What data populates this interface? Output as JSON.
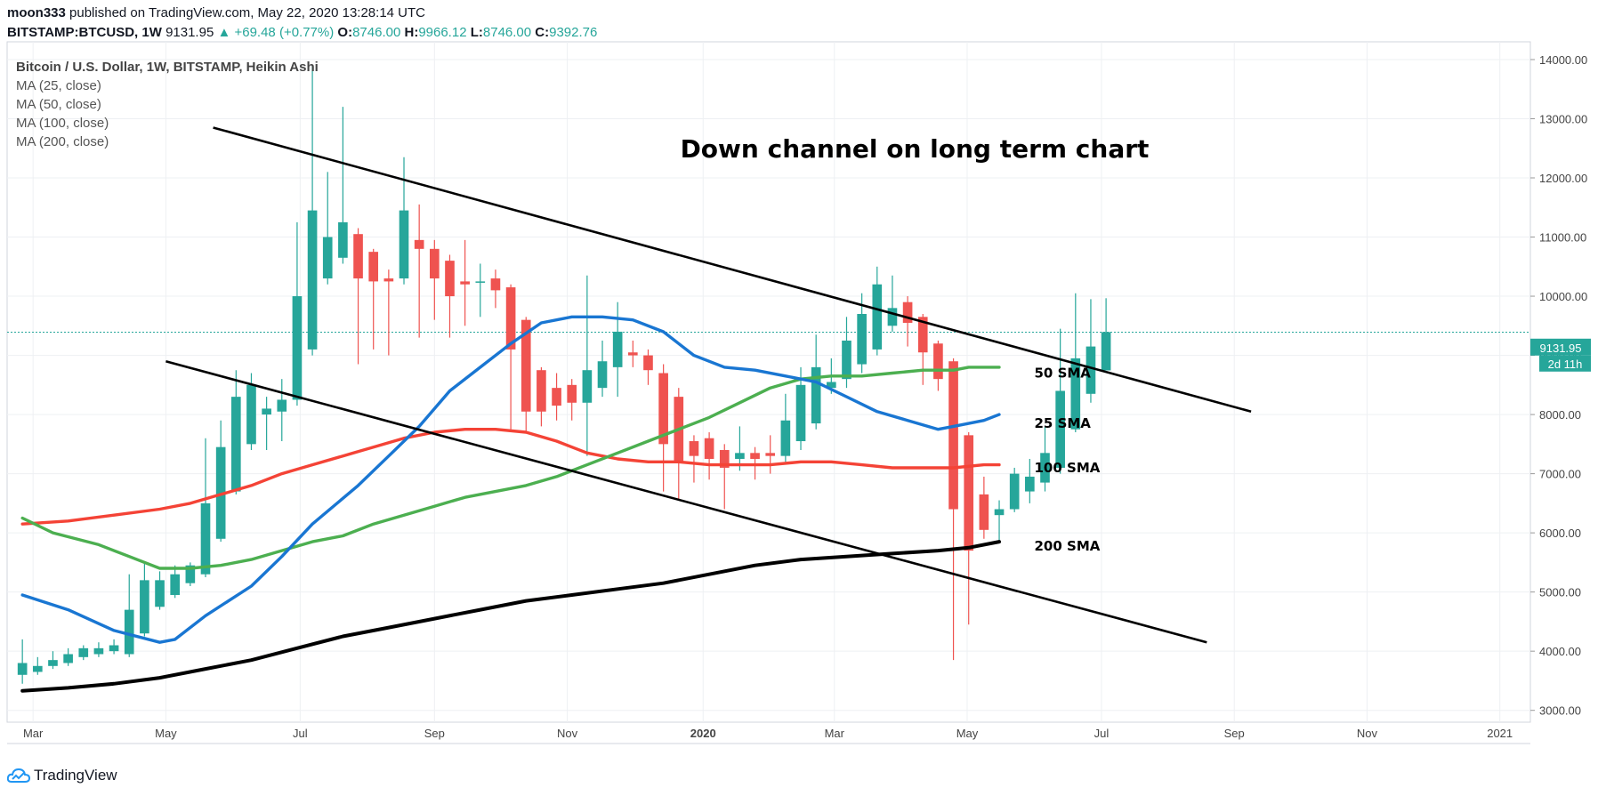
{
  "header": {
    "publisher": "moon333",
    "published_text": "published on TradingView.com, May 22, 2020 13:28:14 UTC",
    "symbol": "BITSTAMP:BTCUSD, 1W",
    "last": "9131.95",
    "change": "▲ +69.48 (+0.77%)",
    "o_label": "O:",
    "o_val": "8746.00",
    "h_label": "H:",
    "h_val": "9966.12",
    "l_label": "L:",
    "l_val": "8746.00",
    "c_label": "C:",
    "c_val": "9392.76"
  },
  "legend": {
    "main": "Bitcoin / U.S. Dollar, 1W, BITSTAMP, Heikin Ashi",
    "ma25": "MA (25, close)",
    "ma50": "MA (50, close)",
    "ma100": "MA (100, close)",
    "ma200": "MA (200, close)"
  },
  "footer": {
    "brand": "TradingView",
    "logo_icon": "tradingview-cloud-icon"
  },
  "colors": {
    "up": "#26a69a",
    "down": "#ef5350",
    "ma25": "#1976d2",
    "ma50": "#4caf50",
    "ma100": "#f44336",
    "ma200": "#000000",
    "grid": "#eef0f3"
  },
  "chart_data": {
    "type": "candlestick",
    "title": "Down channel on long term chart",
    "y_ticks": [
      "14000.00",
      "13000.00",
      "12000.00",
      "11000.00",
      "10000.00",
      "9000.00",
      "8000.00",
      "7000.00",
      "6000.00",
      "5000.00",
      "4000.00",
      "3000.00"
    ],
    "ylim": [
      2800,
      14300
    ],
    "x_ticks": [
      {
        "label": "Mar",
        "week": 0.7
      },
      {
        "label": "May",
        "week": 9.4
      },
      {
        "label": "Jul",
        "week": 18.2
      },
      {
        "label": "Sep",
        "week": 27.0
      },
      {
        "label": "Nov",
        "week": 35.7
      },
      {
        "label": "2020",
        "week": 44.6
      },
      {
        "label": "Mar",
        "week": 53.2
      },
      {
        "label": "May",
        "week": 61.9
      },
      {
        "label": "Jul",
        "week": 70.7
      },
      {
        "label": "Sep",
        "week": 79.4
      },
      {
        "label": "Nov",
        "week": 88.1
      },
      {
        "label": "2021",
        "week": 96.8
      }
    ],
    "xlim": [
      -1,
      98.8
    ],
    "last_price": "9131.95",
    "countdown": "2d 11h",
    "last_close_line": 9392.76,
    "candles": [
      {
        "o": 3600,
        "h": 4200,
        "l": 3450,
        "c": 3800
      },
      {
        "o": 3650,
        "h": 3900,
        "l": 3600,
        "c": 3750
      },
      {
        "o": 3750,
        "h": 4000,
        "l": 3700,
        "c": 3850
      },
      {
        "o": 3800,
        "h": 4050,
        "l": 3750,
        "c": 3950
      },
      {
        "o": 3900,
        "h": 4100,
        "l": 3850,
        "c": 4050
      },
      {
        "o": 3950,
        "h": 4150,
        "l": 3900,
        "c": 4050
      },
      {
        "o": 4000,
        "h": 4200,
        "l": 3950,
        "c": 4100
      },
      {
        "o": 3950,
        "h": 5300,
        "l": 3900,
        "c": 4700
      },
      {
        "o": 4300,
        "h": 5500,
        "l": 4250,
        "c": 5200
      },
      {
        "o": 4750,
        "h": 5350,
        "l": 4700,
        "c": 5200
      },
      {
        "o": 4950,
        "h": 5450,
        "l": 4900,
        "c": 5300
      },
      {
        "o": 5150,
        "h": 5500,
        "l": 5100,
        "c": 5450
      },
      {
        "o": 5300,
        "h": 7600,
        "l": 5250,
        "c": 6500
      },
      {
        "o": 5900,
        "h": 7900,
        "l": 5850,
        "c": 7450
      },
      {
        "o": 6700,
        "h": 8750,
        "l": 6650,
        "c": 8300
      },
      {
        "o": 7500,
        "h": 8700,
        "l": 7400,
        "c": 8500
      },
      {
        "o": 8000,
        "h": 8300,
        "l": 7400,
        "c": 8100
      },
      {
        "o": 8050,
        "h": 8600,
        "l": 7550,
        "c": 8250
      },
      {
        "o": 8250,
        "h": 11250,
        "l": 8150,
        "c": 10000
      },
      {
        "o": 9100,
        "h": 13900,
        "l": 9000,
        "c": 11450
      },
      {
        "o": 10300,
        "h": 12100,
        "l": 10200,
        "c": 11000
      },
      {
        "o": 10650,
        "h": 13200,
        "l": 10550,
        "c": 11250
      },
      {
        "o": 11050,
        "h": 11150,
        "l": 8850,
        "c": 10300
      },
      {
        "o": 10750,
        "h": 10800,
        "l": 9100,
        "c": 10250
      },
      {
        "o": 10300,
        "h": 10450,
        "l": 9000,
        "c": 10250
      },
      {
        "o": 10300,
        "h": 12350,
        "l": 10200,
        "c": 11450
      },
      {
        "o": 10950,
        "h": 11550,
        "l": 9300,
        "c": 10800
      },
      {
        "o": 10800,
        "h": 10950,
        "l": 9600,
        "c": 10300
      },
      {
        "o": 10600,
        "h": 10700,
        "l": 9300,
        "c": 10000
      },
      {
        "o": 10250,
        "h": 10950,
        "l": 9500,
        "c": 10200
      },
      {
        "o": 10250,
        "h": 10550,
        "l": 9650,
        "c": 10250
      },
      {
        "o": 10300,
        "h": 10450,
        "l": 9800,
        "c": 10100
      },
      {
        "o": 10150,
        "h": 10200,
        "l": 7750,
        "c": 9100
      },
      {
        "o": 9600,
        "h": 9650,
        "l": 7700,
        "c": 8050
      },
      {
        "o": 8750,
        "h": 8800,
        "l": 7800,
        "c": 8050
      },
      {
        "o": 8450,
        "h": 8700,
        "l": 7900,
        "c": 8150
      },
      {
        "o": 8500,
        "h": 8600,
        "l": 7900,
        "c": 8200
      },
      {
        "o": 8200,
        "h": 10350,
        "l": 7300,
        "c": 8750
      },
      {
        "o": 8450,
        "h": 9250,
        "l": 8300,
        "c": 8900
      },
      {
        "o": 8800,
        "h": 9900,
        "l": 8300,
        "c": 9400
      },
      {
        "o": 9050,
        "h": 9250,
        "l": 8800,
        "c": 9000
      },
      {
        "o": 9000,
        "h": 9100,
        "l": 8500,
        "c": 8750
      },
      {
        "o": 8700,
        "h": 8850,
        "l": 6700,
        "c": 7500
      },
      {
        "o": 8300,
        "h": 8450,
        "l": 6550,
        "c": 7200
      },
      {
        "o": 7550,
        "h": 7650,
        "l": 6850,
        "c": 7300
      },
      {
        "o": 7600,
        "h": 7700,
        "l": 6900,
        "c": 7250
      },
      {
        "o": 7400,
        "h": 7500,
        "l": 6400,
        "c": 7100
      },
      {
        "o": 7250,
        "h": 7800,
        "l": 7050,
        "c": 7350
      },
      {
        "o": 7350,
        "h": 7450,
        "l": 6900,
        "c": 7250
      },
      {
        "o": 7350,
        "h": 7650,
        "l": 7000,
        "c": 7300
      },
      {
        "o": 7300,
        "h": 8350,
        "l": 7200,
        "c": 7900
      },
      {
        "o": 7550,
        "h": 8800,
        "l": 7400,
        "c": 8500
      },
      {
        "o": 7850,
        "h": 9350,
        "l": 7750,
        "c": 8800
      },
      {
        "o": 8450,
        "h": 8950,
        "l": 8350,
        "c": 8550
      },
      {
        "o": 8600,
        "h": 9650,
        "l": 8450,
        "c": 9250
      },
      {
        "o": 8850,
        "h": 10050,
        "l": 8700,
        "c": 9700
      },
      {
        "o": 9100,
        "h": 10500,
        "l": 9000,
        "c": 10200
      },
      {
        "o": 9500,
        "h": 10350,
        "l": 9400,
        "c": 9800
      },
      {
        "o": 9900,
        "h": 10000,
        "l": 9150,
        "c": 9550
      },
      {
        "o": 9650,
        "h": 9700,
        "l": 8500,
        "c": 9050
      },
      {
        "o": 9200,
        "h": 9250,
        "l": 8400,
        "c": 8600
      },
      {
        "o": 8900,
        "h": 8950,
        "l": 3850,
        "c": 6400
      },
      {
        "o": 7650,
        "h": 7700,
        "l": 4450,
        "c": 5700
      },
      {
        "o": 6650,
        "h": 6950,
        "l": 5900,
        "c": 6050
      },
      {
        "o": 6300,
        "h": 6550,
        "l": 5850,
        "c": 6400
      },
      {
        "o": 6400,
        "h": 7100,
        "l": 6350,
        "c": 7000
      },
      {
        "o": 6700,
        "h": 7250,
        "l": 6500,
        "c": 6950
      },
      {
        "o": 6850,
        "h": 7800,
        "l": 6700,
        "c": 7350
      },
      {
        "o": 7100,
        "h": 9450,
        "l": 7000,
        "c": 8400
      },
      {
        "o": 7750,
        "h": 10050,
        "l": 7700,
        "c": 8950
      },
      {
        "o": 8350,
        "h": 9950,
        "l": 8200,
        "c": 9150
      },
      {
        "o": 8746,
        "h": 9966,
        "l": 8746,
        "c": 9393
      }
    ],
    "ma25": [
      [
        0,
        4950
      ],
      [
        3,
        4700
      ],
      [
        6,
        4350
      ],
      [
        9,
        4150
      ],
      [
        10,
        4200
      ],
      [
        12,
        4600
      ],
      [
        15,
        5100
      ],
      [
        17,
        5600
      ],
      [
        19,
        6150
      ],
      [
        22,
        6800
      ],
      [
        24,
        7300
      ],
      [
        26,
        7800
      ],
      [
        28,
        8400
      ],
      [
        30,
        8800
      ],
      [
        32,
        9200
      ],
      [
        34,
        9550
      ],
      [
        36,
        9650
      ],
      [
        38,
        9650
      ],
      [
        40,
        9600
      ],
      [
        42,
        9400
      ],
      [
        44,
        9000
      ],
      [
        46,
        8800
      ],
      [
        48,
        8750
      ],
      [
        50,
        8650
      ],
      [
        52,
        8550
      ],
      [
        54,
        8300
      ],
      [
        56,
        8050
      ],
      [
        58,
        7900
      ],
      [
        60,
        7750
      ],
      [
        61,
        7800
      ],
      [
        63,
        7900
      ],
      [
        64,
        8000
      ]
    ],
    "ma50": [
      [
        0,
        6250
      ],
      [
        2,
        6000
      ],
      [
        5,
        5800
      ],
      [
        7,
        5600
      ],
      [
        9,
        5400
      ],
      [
        11,
        5400
      ],
      [
        13,
        5450
      ],
      [
        15,
        5550
      ],
      [
        17,
        5700
      ],
      [
        19,
        5850
      ],
      [
        21,
        5950
      ],
      [
        23,
        6150
      ],
      [
        25,
        6300
      ],
      [
        27,
        6450
      ],
      [
        29,
        6600
      ],
      [
        31,
        6700
      ],
      [
        33,
        6800
      ],
      [
        35,
        6950
      ],
      [
        37,
        7150
      ],
      [
        39,
        7350
      ],
      [
        41,
        7550
      ],
      [
        43,
        7750
      ],
      [
        45,
        7950
      ],
      [
        47,
        8200
      ],
      [
        49,
        8450
      ],
      [
        51,
        8600
      ],
      [
        53,
        8650
      ],
      [
        55,
        8650
      ],
      [
        57,
        8700
      ],
      [
        59,
        8750
      ],
      [
        61,
        8750
      ],
      [
        62,
        8800
      ],
      [
        64,
        8800
      ]
    ],
    "ma100": [
      [
        0,
        6150
      ],
      [
        3,
        6200
      ],
      [
        6,
        6300
      ],
      [
        9,
        6400
      ],
      [
        11,
        6500
      ],
      [
        13,
        6650
      ],
      [
        15,
        6800
      ],
      [
        17,
        7000
      ],
      [
        19,
        7150
      ],
      [
        21,
        7300
      ],
      [
        23,
        7450
      ],
      [
        25,
        7600
      ],
      [
        27,
        7700
      ],
      [
        29,
        7750
      ],
      [
        31,
        7750
      ],
      [
        33,
        7700
      ],
      [
        35,
        7550
      ],
      [
        37,
        7350
      ],
      [
        39,
        7250
      ],
      [
        41,
        7200
      ],
      [
        43,
        7200
      ],
      [
        45,
        7150
      ],
      [
        47,
        7150
      ],
      [
        49,
        7150
      ],
      [
        51,
        7200
      ],
      [
        53,
        7200
      ],
      [
        55,
        7150
      ],
      [
        57,
        7100
      ],
      [
        59,
        7100
      ],
      [
        61,
        7100
      ],
      [
        63,
        7150
      ],
      [
        64,
        7150
      ]
    ],
    "ma200": [
      [
        0,
        3330
      ],
      [
        3,
        3380
      ],
      [
        6,
        3450
      ],
      [
        9,
        3550
      ],
      [
        12,
        3700
      ],
      [
        15,
        3850
      ],
      [
        18,
        4050
      ],
      [
        21,
        4250
      ],
      [
        24,
        4400
      ],
      [
        27,
        4550
      ],
      [
        30,
        4700
      ],
      [
        33,
        4850
      ],
      [
        36,
        4950
      ],
      [
        39,
        5050
      ],
      [
        42,
        5150
      ],
      [
        45,
        5300
      ],
      [
        48,
        5450
      ],
      [
        51,
        5550
      ],
      [
        54,
        5600
      ],
      [
        57,
        5650
      ],
      [
        60,
        5700
      ],
      [
        62,
        5750
      ],
      [
        64,
        5850
      ]
    ],
    "channel_lines": [
      {
        "from": [
          12.5,
          12850
        ],
        "to": [
          80.5,
          8050
        ]
      },
      {
        "from": [
          9.4,
          8900
        ],
        "to": [
          77.6,
          4150
        ]
      }
    ],
    "annotations": [
      {
        "text": "50 SMA",
        "week": 66.3,
        "y": 8700
      },
      {
        "text": "25 SMA",
        "week": 66.3,
        "y": 7850
      },
      {
        "text": "100 SMA",
        "week": 66.3,
        "y": 7100
      },
      {
        "text": "200 SMA",
        "week": 66.3,
        "y": 5780
      }
    ]
  }
}
